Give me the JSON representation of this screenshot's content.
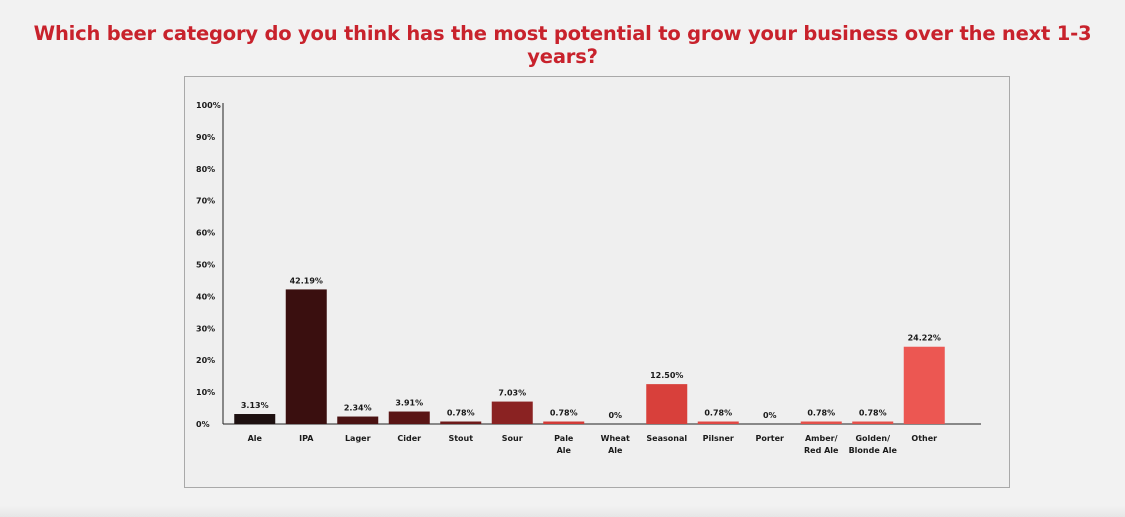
{
  "title": "Which beer category do you think has the most potential to grow your business over the next 1-3 years?",
  "chart_data": {
    "type": "bar",
    "categories": [
      [
        "Ale"
      ],
      [
        "IPA"
      ],
      [
        "Lager"
      ],
      [
        "Cider"
      ],
      [
        "Stout"
      ],
      [
        "Sour"
      ],
      [
        "Pale",
        "Ale"
      ],
      [
        "Wheat",
        "Ale"
      ],
      [
        "Seasonal"
      ],
      [
        "Pilsner"
      ],
      [
        "Porter"
      ],
      [
        "Amber/",
        "Red Ale"
      ],
      [
        "Golden/",
        "Blonde Ale"
      ],
      [
        "Other"
      ]
    ],
    "values": [
      3.13,
      42.19,
      2.34,
      3.91,
      0.78,
      7.03,
      0.78,
      0,
      12.5,
      0.78,
      0,
      0.78,
      0.78,
      24.22
    ],
    "value_labels": [
      "3.13%",
      "42.19%",
      "2.34%",
      "3.91%",
      "0.78%",
      "7.03%",
      "0.78%",
      "0%",
      "12.50%",
      "0.78%",
      "0%",
      "0.78%",
      "0.78%",
      "24.22%"
    ],
    "colors": [
      "#1d1010",
      "#3a0f0f",
      "#4a1212",
      "#5a1515",
      "#6e1a1a",
      "#8a2222",
      "#d23a36",
      "#d23a36",
      "#d8403b",
      "#e04844",
      "#e04844",
      "#e4504a",
      "#e4504a",
      "#ec5752"
    ],
    "yticks": [
      "0%",
      "10%",
      "20%",
      "30%",
      "40%",
      "50%",
      "60%",
      "70%",
      "80%",
      "90%",
      "100%"
    ],
    "ylim": [
      0,
      100
    ],
    "xlabel": "",
    "ylabel": "",
    "grid": false,
    "legend": "none"
  }
}
